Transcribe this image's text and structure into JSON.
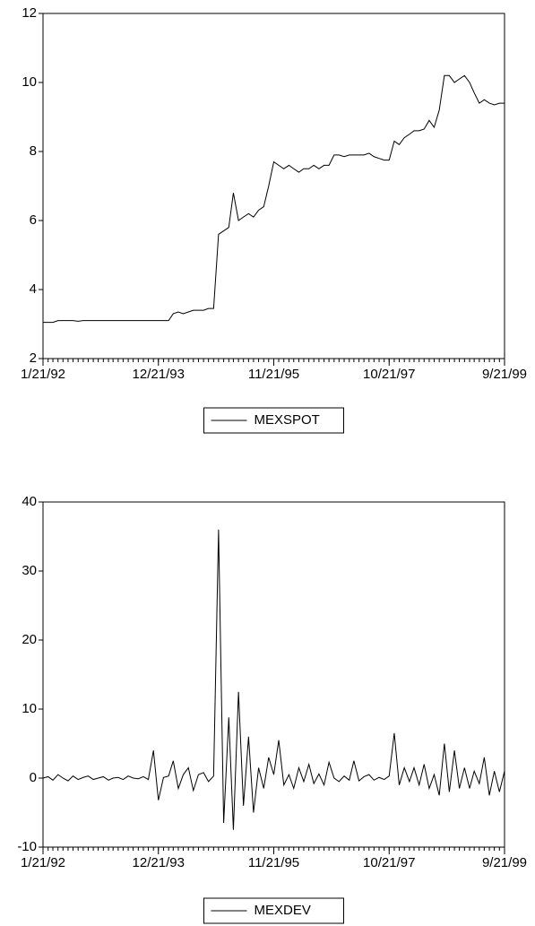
{
  "chart_data": [
    {
      "type": "line",
      "x": [
        "1/21/92",
        "2/21/92",
        "3/21/92",
        "4/21/92",
        "5/21/92",
        "6/21/92",
        "7/21/92",
        "8/21/92",
        "9/21/92",
        "10/21/92",
        "11/21/92",
        "12/21/92",
        "1/21/93",
        "2/21/93",
        "3/21/93",
        "4/21/93",
        "5/21/93",
        "6/21/93",
        "7/21/93",
        "8/21/93",
        "9/21/93",
        "10/21/93",
        "11/21/93",
        "12/21/93",
        "1/21/94",
        "2/21/94",
        "3/21/94",
        "4/21/94",
        "5/21/94",
        "6/21/94",
        "7/21/94",
        "8/21/94",
        "9/21/94",
        "10/21/94",
        "11/21/94",
        "12/21/94",
        "1/21/95",
        "2/21/95",
        "3/21/95",
        "4/21/95",
        "5/21/95",
        "6/21/95",
        "7/21/95",
        "8/21/95",
        "9/21/95",
        "10/21/95",
        "11/21/95",
        "12/21/95",
        "1/21/96",
        "2/21/96",
        "3/21/96",
        "4/21/96",
        "5/21/96",
        "6/21/96",
        "7/21/96",
        "8/21/96",
        "9/21/96",
        "10/21/96",
        "11/21/96",
        "12/21/96",
        "1/21/97",
        "2/21/97",
        "3/21/97",
        "4/21/97",
        "5/21/97",
        "6/21/97",
        "7/21/97",
        "8/21/97",
        "9/21/97",
        "10/21/97",
        "11/21/97",
        "12/21/97",
        "1/21/98",
        "2/21/98",
        "3/21/98",
        "4/21/98",
        "5/21/98",
        "6/21/98",
        "7/21/98",
        "8/21/98",
        "9/21/98",
        "10/21/98",
        "11/21/98",
        "12/21/98",
        "1/21/99",
        "2/21/99",
        "3/21/99",
        "4/21/99",
        "5/21/99",
        "6/21/99",
        "7/21/99",
        "8/21/99",
        "9/21/99"
      ],
      "series": [
        {
          "name": "MEXSPOT",
          "color": "#000000",
          "values": [
            3.05,
            3.05,
            3.05,
            3.1,
            3.1,
            3.1,
            3.1,
            3.08,
            3.1,
            3.1,
            3.1,
            3.1,
            3.1,
            3.1,
            3.1,
            3.1,
            3.1,
            3.1,
            3.1,
            3.1,
            3.1,
            3.1,
            3.1,
            3.1,
            3.1,
            3.1,
            3.3,
            3.35,
            3.3,
            3.35,
            3.4,
            3.4,
            3.4,
            3.45,
            3.45,
            5.6,
            5.7,
            5.8,
            6.8,
            6.0,
            6.1,
            6.2,
            6.1,
            6.3,
            6.4,
            7.0,
            7.7,
            7.6,
            7.5,
            7.6,
            7.5,
            7.4,
            7.5,
            7.5,
            7.6,
            7.5,
            7.6,
            7.6,
            7.9,
            7.9,
            7.85,
            7.9,
            7.9,
            7.9,
            7.9,
            7.95,
            7.85,
            7.8,
            7.75,
            7.75,
            8.3,
            8.2,
            8.4,
            8.5,
            8.6,
            8.6,
            8.65,
            8.9,
            8.7,
            9.2,
            10.2,
            10.2,
            10.0,
            10.1,
            10.2,
            10.0,
            9.7,
            9.4,
            9.5,
            9.4,
            9.35,
            9.4,
            9.4
          ]
        }
      ],
      "xlim": [
        "1/21/92",
        "9/21/99"
      ],
      "xticks": [
        "1/21/92",
        "12/21/93",
        "11/21/95",
        "10/21/97",
        "9/21/99"
      ],
      "ylim": [
        2,
        12
      ],
      "yticks": [
        2,
        4,
        6,
        8,
        10,
        12
      ],
      "grid": false
    },
    {
      "type": "line",
      "x": [
        "1/21/92",
        "2/21/92",
        "3/21/92",
        "4/21/92",
        "5/21/92",
        "6/21/92",
        "7/21/92",
        "8/21/92",
        "9/21/92",
        "10/21/92",
        "11/21/92",
        "12/21/92",
        "1/21/93",
        "2/21/93",
        "3/21/93",
        "4/21/93",
        "5/21/93",
        "6/21/93",
        "7/21/93",
        "8/21/93",
        "9/21/93",
        "10/21/93",
        "11/21/93",
        "12/21/93",
        "1/21/94",
        "2/21/94",
        "3/21/94",
        "4/21/94",
        "5/21/94",
        "6/21/94",
        "7/21/94",
        "8/21/94",
        "9/21/94",
        "10/21/94",
        "11/21/94",
        "12/21/94",
        "1/21/95",
        "2/21/95",
        "3/21/95",
        "4/21/95",
        "5/21/95",
        "6/21/95",
        "7/21/95",
        "8/21/95",
        "9/21/95",
        "10/21/95",
        "11/21/95",
        "12/21/95",
        "1/21/96",
        "2/21/96",
        "3/21/96",
        "4/21/96",
        "5/21/96",
        "6/21/96",
        "7/21/96",
        "8/21/96",
        "9/21/96",
        "10/21/96",
        "11/21/96",
        "12/21/96",
        "1/21/97",
        "2/21/97",
        "3/21/97",
        "4/21/97",
        "5/21/97",
        "6/21/97",
        "7/21/97",
        "8/21/97",
        "9/21/97",
        "10/21/97",
        "11/21/97",
        "12/21/97",
        "1/21/98",
        "2/21/98",
        "3/21/98",
        "4/21/98",
        "5/21/98",
        "6/21/98",
        "7/21/98",
        "8/21/98",
        "9/21/98",
        "10/21/98",
        "11/21/98",
        "12/21/98",
        "1/21/99",
        "2/21/99",
        "3/21/99",
        "4/21/99",
        "5/21/99",
        "6/21/99",
        "7/21/99",
        "8/21/99",
        "9/21/99"
      ],
      "series": [
        {
          "name": "MEXDEV",
          "color": "#000000",
          "values": [
            0,
            0.2,
            -0.3,
            0.5,
            0,
            -0.4,
            0.3,
            -0.2,
            0.1,
            0.3,
            -0.2,
            0,
            0.2,
            -0.3,
            0,
            0.1,
            -0.2,
            0.3,
            0,
            -0.1,
            0.2,
            -0.2,
            4.0,
            -3.2,
            0.1,
            0.3,
            2.5,
            -1.5,
            0.5,
            1.5,
            -1.8,
            0.5,
            0.8,
            -0.5,
            0.3,
            36,
            -6.5,
            8.8,
            -7.5,
            12.5,
            -4,
            6,
            -5,
            1.5,
            -1.5,
            3,
            0.5,
            5.5,
            -1,
            0.5,
            -1.5,
            1.5,
            -0.5,
            2,
            -0.8,
            0.6,
            -1,
            2.3,
            0,
            -0.5,
            0.3,
            -0.3,
            2.5,
            -0.4,
            0.2,
            0.5,
            -0.3,
            0.1,
            -0.2,
            0.3,
            6.5,
            -1,
            1.5,
            -0.5,
            1.5,
            -1,
            2,
            -1.5,
            0.5,
            -2.5,
            5,
            -2,
            4,
            -1.5,
            1.5,
            -1.5,
            1,
            -0.8,
            3,
            -2.5,
            1,
            -2,
            1
          ]
        }
      ],
      "xlim": [
        "1/21/92",
        "9/21/99"
      ],
      "xticks": [
        "1/21/92",
        "12/21/93",
        "11/21/95",
        "10/21/97",
        "9/21/99"
      ],
      "ylim": [
        -10,
        40
      ],
      "yticks": [
        -10,
        0,
        10,
        20,
        30,
        40
      ],
      "grid": false
    }
  ]
}
